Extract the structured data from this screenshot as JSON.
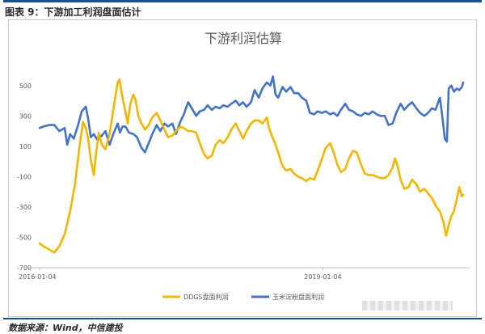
{
  "figure_title": "图表 9：下游加工利润盘面估计",
  "source_note": "数据来源：Wind，中信建投",
  "chart_data": {
    "type": "line",
    "title": "下游利润估算",
    "xlabel": "",
    "ylabel": "",
    "ylim": [
      -700,
      600
    ],
    "yticks": [
      500,
      300,
      100,
      -100,
      -300,
      -500,
      -700
    ],
    "grid": false,
    "legend_position": "bottom",
    "x_start": "2016-01-04",
    "x_end": "2020-06-30",
    "x_tick_labels": [
      "2016-01-04",
      "2019-01-04"
    ],
    "x_tick_dates": [
      "2016-01-04",
      "2019-01-04"
    ],
    "series": [
      {
        "name": "DDGS盘面利润",
        "color": "#f2b600",
        "points": [
          [
            "2016-01-04",
            -540
          ],
          [
            "2016-01-20",
            -560
          ],
          [
            "2016-02-10",
            -580
          ],
          [
            "2016-03-01",
            -600
          ],
          [
            "2016-03-20",
            -560
          ],
          [
            "2016-04-10",
            -480
          ],
          [
            "2016-05-01",
            -330
          ],
          [
            "2016-05-20",
            -150
          ],
          [
            "2016-06-05",
            80
          ],
          [
            "2016-06-20",
            260
          ],
          [
            "2016-07-01",
            220
          ],
          [
            "2016-07-10",
            150
          ],
          [
            "2016-07-20",
            10
          ],
          [
            "2016-08-01",
            -90
          ],
          [
            "2016-08-10",
            60
          ],
          [
            "2016-08-20",
            190
          ],
          [
            "2016-09-01",
            110
          ],
          [
            "2016-09-15",
            80
          ],
          [
            "2016-10-01",
            180
          ],
          [
            "2016-10-15",
            340
          ],
          [
            "2016-11-01",
            520
          ],
          [
            "2016-11-08",
            540
          ],
          [
            "2016-11-20",
            420
          ],
          [
            "2016-12-01",
            330
          ],
          [
            "2016-12-10",
            250
          ],
          [
            "2016-12-20",
            380
          ],
          [
            "2017-01-01",
            440
          ],
          [
            "2017-01-10",
            400
          ],
          [
            "2017-01-20",
            300
          ],
          [
            "2017-02-01",
            250
          ],
          [
            "2017-02-15",
            210
          ],
          [
            "2017-03-01",
            240
          ],
          [
            "2017-03-15",
            290
          ],
          [
            "2017-04-01",
            320
          ],
          [
            "2017-04-15",
            270
          ],
          [
            "2017-05-01",
            210
          ],
          [
            "2017-05-15",
            160
          ],
          [
            "2017-06-01",
            170
          ],
          [
            "2017-06-15",
            200
          ],
          [
            "2017-07-01",
            230
          ],
          [
            "2017-07-15",
            220
          ],
          [
            "2017-08-01",
            200
          ],
          [
            "2017-08-15",
            200
          ],
          [
            "2017-09-01",
            190
          ],
          [
            "2017-09-15",
            120
          ],
          [
            "2017-10-01",
            50
          ],
          [
            "2017-10-15",
            20
          ],
          [
            "2017-11-01",
            40
          ],
          [
            "2017-11-15",
            110
          ],
          [
            "2017-12-01",
            140
          ],
          [
            "2017-12-15",
            120
          ],
          [
            "2018-01-01",
            160
          ],
          [
            "2018-01-15",
            210
          ],
          [
            "2018-02-01",
            250
          ],
          [
            "2018-02-15",
            200
          ],
          [
            "2018-03-01",
            150
          ],
          [
            "2018-03-15",
            200
          ],
          [
            "2018-04-01",
            250
          ],
          [
            "2018-04-15",
            270
          ],
          [
            "2018-05-01",
            270
          ],
          [
            "2018-05-15",
            250
          ],
          [
            "2018-06-01",
            290
          ],
          [
            "2018-06-10",
            220
          ],
          [
            "2018-06-20",
            170
          ],
          [
            "2018-07-01",
            130
          ],
          [
            "2018-07-15",
            60
          ],
          [
            "2018-08-01",
            -30
          ],
          [
            "2018-08-15",
            -60
          ],
          [
            "2018-09-01",
            -50
          ],
          [
            "2018-09-15",
            -80
          ],
          [
            "2018-10-01",
            -100
          ],
          [
            "2018-10-15",
            -110
          ],
          [
            "2018-11-01",
            -130
          ],
          [
            "2018-11-15",
            -110
          ],
          [
            "2018-12-01",
            -120
          ],
          [
            "2018-12-15",
            -60
          ],
          [
            "2019-01-01",
            20
          ],
          [
            "2019-01-15",
            90
          ],
          [
            "2019-02-01",
            120
          ],
          [
            "2019-02-15",
            60
          ],
          [
            "2019-03-01",
            -20
          ],
          [
            "2019-03-15",
            -70
          ],
          [
            "2019-04-01",
            -50
          ],
          [
            "2019-04-15",
            20
          ],
          [
            "2019-05-01",
            70
          ],
          [
            "2019-05-15",
            60
          ],
          [
            "2019-06-01",
            -20
          ],
          [
            "2019-06-15",
            -80
          ],
          [
            "2019-07-01",
            -90
          ],
          [
            "2019-07-15",
            -90
          ],
          [
            "2019-08-01",
            -100
          ],
          [
            "2019-08-15",
            -110
          ],
          [
            "2019-09-01",
            -110
          ],
          [
            "2019-09-15",
            -90
          ],
          [
            "2019-10-01",
            -40
          ],
          [
            "2019-10-10",
            20
          ],
          [
            "2019-10-20",
            -30
          ],
          [
            "2019-11-01",
            -120
          ],
          [
            "2019-11-15",
            -180
          ],
          [
            "2019-12-01",
            -170
          ],
          [
            "2019-12-15",
            -120
          ],
          [
            "2020-01-01",
            -150
          ],
          [
            "2020-01-15",
            -200
          ],
          [
            "2020-02-01",
            -180
          ],
          [
            "2020-02-15",
            -210
          ],
          [
            "2020-03-01",
            -240
          ],
          [
            "2020-03-15",
            -290
          ],
          [
            "2020-04-01",
            -330
          ],
          [
            "2020-04-15",
            -400
          ],
          [
            "2020-04-25",
            -490
          ],
          [
            "2020-05-05",
            -420
          ],
          [
            "2020-05-15",
            -360
          ],
          [
            "2020-05-25",
            -330
          ],
          [
            "2020-06-05",
            -250
          ],
          [
            "2020-06-15",
            -170
          ],
          [
            "2020-06-25",
            -230
          ],
          [
            "2020-06-30",
            -220
          ]
        ]
      },
      {
        "name": "玉米淀粉盘面利润",
        "color": "#4472c4",
        "points": [
          [
            "2016-01-04",
            220
          ],
          [
            "2016-01-20",
            230
          ],
          [
            "2016-02-10",
            240
          ],
          [
            "2016-03-01",
            240
          ],
          [
            "2016-03-20",
            200
          ],
          [
            "2016-04-10",
            220
          ],
          [
            "2016-04-20",
            110
          ],
          [
            "2016-05-01",
            180
          ],
          [
            "2016-05-15",
            150
          ],
          [
            "2016-06-01",
            240
          ],
          [
            "2016-06-15",
            330
          ],
          [
            "2016-07-01",
            360
          ],
          [
            "2016-07-10",
            280
          ],
          [
            "2016-07-20",
            160
          ],
          [
            "2016-08-01",
            180
          ],
          [
            "2016-08-15",
            140
          ],
          [
            "2016-09-01",
            170
          ],
          [
            "2016-09-15",
            200
          ],
          [
            "2016-10-01",
            110
          ],
          [
            "2016-10-15",
            180
          ],
          [
            "2016-11-01",
            250
          ],
          [
            "2016-11-10",
            190
          ],
          [
            "2016-11-20",
            230
          ],
          [
            "2016-12-01",
            230
          ],
          [
            "2016-12-15",
            190
          ],
          [
            "2017-01-01",
            180
          ],
          [
            "2017-01-15",
            160
          ],
          [
            "2017-02-01",
            90
          ],
          [
            "2017-02-15",
            60
          ],
          [
            "2017-03-01",
            120
          ],
          [
            "2017-03-15",
            180
          ],
          [
            "2017-04-01",
            240
          ],
          [
            "2017-04-15",
            200
          ],
          [
            "2017-05-01",
            250
          ],
          [
            "2017-05-15",
            230
          ],
          [
            "2017-06-01",
            250
          ],
          [
            "2017-06-15",
            180
          ],
          [
            "2017-07-01",
            260
          ],
          [
            "2017-07-15",
            310
          ],
          [
            "2017-08-01",
            390
          ],
          [
            "2017-08-15",
            350
          ],
          [
            "2017-09-01",
            300
          ],
          [
            "2017-09-15",
            330
          ],
          [
            "2017-10-01",
            340
          ],
          [
            "2017-10-15",
            370
          ],
          [
            "2017-11-01",
            340
          ],
          [
            "2017-11-15",
            360
          ],
          [
            "2017-12-01",
            350
          ],
          [
            "2017-12-15",
            370
          ],
          [
            "2018-01-01",
            360
          ],
          [
            "2018-01-15",
            380
          ],
          [
            "2018-02-01",
            400
          ],
          [
            "2018-02-15",
            370
          ],
          [
            "2018-03-01",
            390
          ],
          [
            "2018-03-15",
            360
          ],
          [
            "2018-04-01",
            390
          ],
          [
            "2018-04-15",
            470
          ],
          [
            "2018-05-01",
            420
          ],
          [
            "2018-05-15",
            480
          ],
          [
            "2018-06-01",
            520
          ],
          [
            "2018-06-15",
            500
          ],
          [
            "2018-06-25",
            560
          ],
          [
            "2018-07-05",
            440
          ],
          [
            "2018-07-15",
            420
          ],
          [
            "2018-08-01",
            490
          ],
          [
            "2018-08-15",
            460
          ],
          [
            "2018-09-01",
            490
          ],
          [
            "2018-09-15",
            450
          ],
          [
            "2018-10-01",
            450
          ],
          [
            "2018-10-15",
            420
          ],
          [
            "2018-11-01",
            400
          ],
          [
            "2018-11-15",
            320
          ],
          [
            "2018-12-01",
            310
          ],
          [
            "2018-12-15",
            330
          ],
          [
            "2019-01-01",
            320
          ],
          [
            "2019-01-15",
            330
          ],
          [
            "2019-02-01",
            310
          ],
          [
            "2019-02-15",
            320
          ],
          [
            "2019-03-01",
            300
          ],
          [
            "2019-03-15",
            340
          ],
          [
            "2019-04-01",
            380
          ],
          [
            "2019-04-15",
            340
          ],
          [
            "2019-05-01",
            330
          ],
          [
            "2019-05-15",
            310
          ],
          [
            "2019-06-01",
            300
          ],
          [
            "2019-06-15",
            320
          ],
          [
            "2019-07-01",
            310
          ],
          [
            "2019-07-15",
            330
          ],
          [
            "2019-08-01",
            310
          ],
          [
            "2019-08-15",
            300
          ],
          [
            "2019-09-01",
            300
          ],
          [
            "2019-09-15",
            240
          ],
          [
            "2019-10-01",
            250
          ],
          [
            "2019-10-15",
            320
          ],
          [
            "2019-11-01",
            380
          ],
          [
            "2019-11-15",
            340
          ],
          [
            "2019-12-01",
            370
          ],
          [
            "2019-12-15",
            390
          ],
          [
            "2020-01-01",
            350
          ],
          [
            "2020-01-15",
            320
          ],
          [
            "2020-02-01",
            300
          ],
          [
            "2020-02-15",
            320
          ],
          [
            "2020-03-01",
            350
          ],
          [
            "2020-03-15",
            340
          ],
          [
            "2020-04-01",
            420
          ],
          [
            "2020-04-10",
            300
          ],
          [
            "2020-04-20",
            150
          ],
          [
            "2020-04-28",
            130
          ],
          [
            "2020-05-05",
            480
          ],
          [
            "2020-05-15",
            500
          ],
          [
            "2020-05-25",
            460
          ],
          [
            "2020-06-05",
            480
          ],
          [
            "2020-06-15",
            470
          ],
          [
            "2020-06-25",
            490
          ],
          [
            "2020-06-30",
            520
          ]
        ]
      }
    ]
  }
}
